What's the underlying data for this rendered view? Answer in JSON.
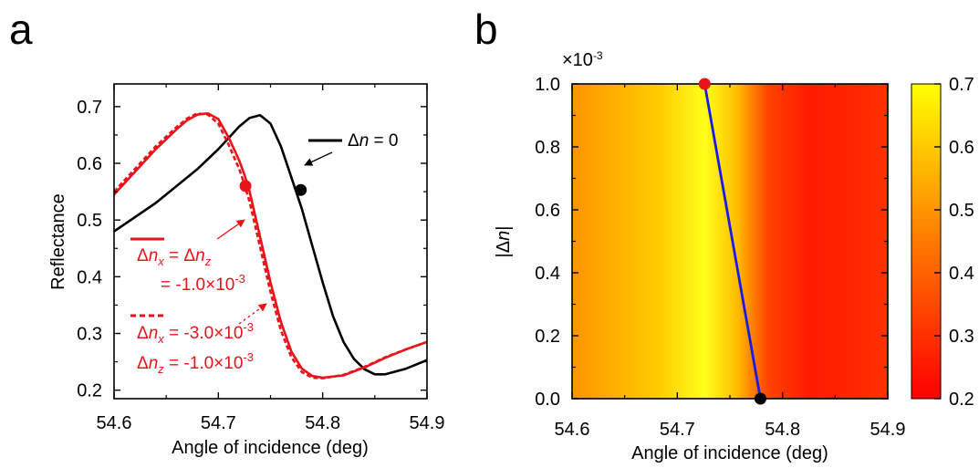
{
  "chart_data": [
    {
      "panel": "a",
      "type": "line",
      "xlabel": "Angle of incidence (deg)",
      "ylabel": "Reflectance",
      "xlim": [
        54.6,
        54.9
      ],
      "ylim": [
        0.185,
        0.74
      ],
      "xticks": [
        "54.6",
        "54.7",
        "54.8",
        "54.9"
      ],
      "yticks": [
        "0.2",
        "0.3",
        "0.4",
        "0.5",
        "0.6",
        "0.7"
      ],
      "grid": false,
      "series": [
        {
          "name": "Δn = 0",
          "color": "#000000",
          "style": "solid",
          "x": [
            54.6,
            54.62,
            54.64,
            54.66,
            54.68,
            54.7,
            54.71,
            54.72,
            54.73,
            54.74,
            54.75,
            54.76,
            54.77,
            54.78,
            54.79,
            54.8,
            54.81,
            54.82,
            54.83,
            54.84,
            54.85,
            54.86,
            54.88,
            54.9
          ],
          "y": [
            0.48,
            0.505,
            0.53,
            0.56,
            0.59,
            0.625,
            0.645,
            0.665,
            0.68,
            0.685,
            0.67,
            0.63,
            0.575,
            0.52,
            0.455,
            0.39,
            0.33,
            0.285,
            0.255,
            0.237,
            0.228,
            0.228,
            0.238,
            0.253
          ]
        },
        {
          "name": "Δnx = Δnz = -1.0×10⁻³",
          "color": "#e8141a",
          "style": "solid",
          "x": [
            54.6,
            54.62,
            54.64,
            54.66,
            54.67,
            54.68,
            54.69,
            54.7,
            54.71,
            54.72,
            54.725,
            54.73,
            54.74,
            54.75,
            54.76,
            54.77,
            54.78,
            54.79,
            54.8,
            54.82,
            54.84,
            54.86,
            54.88,
            54.9
          ],
          "y": [
            0.545,
            0.585,
            0.625,
            0.66,
            0.676,
            0.686,
            0.688,
            0.678,
            0.645,
            0.605,
            0.58,
            0.55,
            0.47,
            0.39,
            0.32,
            0.268,
            0.238,
            0.225,
            0.222,
            0.226,
            0.24,
            0.257,
            0.272,
            0.285
          ]
        },
        {
          "name": "Δnx = -3.0×10⁻³, Δnz = -1.0×10⁻³",
          "color": "#e8141a",
          "style": "dashed",
          "x": [
            54.6,
            54.62,
            54.64,
            54.66,
            54.67,
            54.68,
            54.69,
            54.7,
            54.71,
            54.72,
            54.725,
            54.73,
            54.74,
            54.75,
            54.76,
            54.77,
            54.78,
            54.79,
            54.8,
            54.82,
            54.84,
            54.86,
            54.88,
            54.9
          ],
          "y": [
            0.55,
            0.59,
            0.63,
            0.664,
            0.679,
            0.688,
            0.686,
            0.67,
            0.632,
            0.59,
            0.563,
            0.532,
            0.452,
            0.373,
            0.305,
            0.258,
            0.232,
            0.222,
            0.221,
            0.227,
            0.241,
            0.258,
            0.272,
            0.285
          ]
        }
      ],
      "markers": [
        {
          "x": 54.726,
          "y": 0.56,
          "color": "#e8141a"
        },
        {
          "x": 54.779,
          "y": 0.553,
          "color": "#000000"
        }
      ],
      "annotations": {
        "black_label": "Δn = 0",
        "red_solid_line1": "Δnx = Δnz",
        "red_solid_line2": "= -1.0×10⁻³",
        "red_dashed_line1": "Δnx = -3.0×10⁻³",
        "red_dashed_line2": "Δnz = -1.0×10⁻³"
      }
    },
    {
      "panel": "b",
      "type": "heatmap",
      "xlabel": "Angle of incidence (deg)",
      "ylabel": "|Δn|",
      "xlim": [
        54.6,
        54.9
      ],
      "ylim": [
        0.0,
        1.0
      ],
      "y_multiplier": "×10⁻³",
      "xticks": [
        "54.6",
        "54.7",
        "54.8",
        "54.9"
      ],
      "yticks": [
        "0.0",
        "0.2",
        "0.4",
        "0.6",
        "0.8",
        "1.0"
      ],
      "colorbar": {
        "min": 0.2,
        "max": 0.7,
        "ticks": [
          "0.2",
          "0.3",
          "0.4",
          "0.5",
          "0.6",
          "0.7"
        ],
        "colors": [
          "#ff0000",
          "#ff7a00",
          "#ffff00"
        ]
      },
      "line": {
        "color": "#1a1ae6",
        "points": [
          [
            54.726,
            1.0
          ],
          [
            54.779,
            0.0
          ]
        ]
      },
      "markers": [
        {
          "x": 54.726,
          "y": 1.0,
          "color": "#e8141a"
        },
        {
          "x": 54.779,
          "y": 0.0,
          "color": "#000000"
        }
      ]
    }
  ],
  "panel_letters": {
    "a": "a",
    "b": "b"
  }
}
